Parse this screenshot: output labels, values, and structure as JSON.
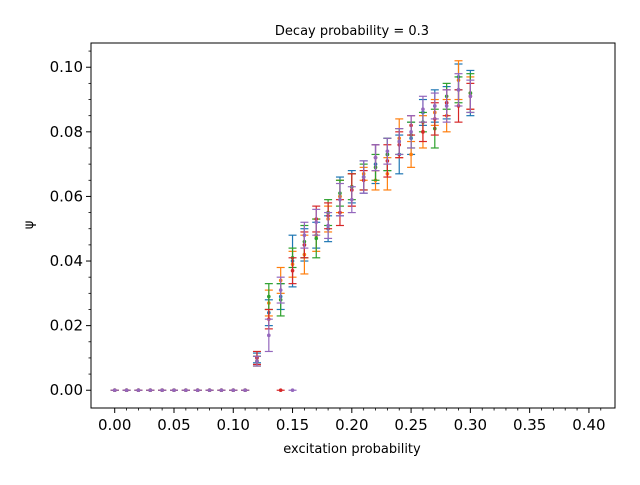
{
  "chart_data": {
    "type": "scatter",
    "title": "Decay probability = 0.3",
    "xlabel": "excitation probability",
    "ylabel": "ψ",
    "xlim": [
      -0.02,
      0.422
    ],
    "ylim": [
      -0.0055,
      0.1075
    ],
    "x_ticks": [
      "0.00",
      "0.05",
      "0.10",
      "0.15",
      "0.20",
      "0.25",
      "0.30",
      "0.35",
      "0.40"
    ],
    "y_ticks": [
      "0.00",
      "0.02",
      "0.04",
      "0.06",
      "0.08",
      "0.10"
    ],
    "grid": false,
    "error_bars": true,
    "colors": {
      "run1": "#1f77b4",
      "run2": "#ff7f0e",
      "run3": "#2ca02c",
      "run4": "#d62728",
      "run5": "#9467bd"
    },
    "x": [
      0.0,
      0.01,
      0.02,
      0.03,
      0.04,
      0.05,
      0.06,
      0.07,
      0.08,
      0.09,
      0.1,
      0.11,
      0.12,
      0.13,
      0.14,
      0.15,
      0.16,
      0.17,
      0.18,
      0.19,
      0.2,
      0.21,
      0.22,
      0.23,
      0.24,
      0.25,
      0.26,
      0.27,
      0.28,
      0.29,
      0.3
    ],
    "series": [
      {
        "color": "#1f77b4",
        "values": [
          0,
          0,
          0,
          0,
          0,
          0,
          0,
          0,
          0,
          0,
          0,
          0,
          0.01,
          0.024,
          0.029,
          0.04,
          0.045,
          0.048,
          0.05,
          0.06,
          0.063,
          0.066,
          0.07,
          0.073,
          0.073,
          0.078,
          0.086,
          0.088,
          0.089,
          0.097,
          0.092
        ],
        "err": [
          0,
          0,
          0,
          0,
          0,
          0,
          0,
          0,
          0,
          0,
          0,
          0,
          0.0015,
          0.004,
          0.004,
          0.008,
          0.005,
          0.004,
          0.004,
          0.006,
          0.005,
          0.005,
          0.006,
          0.005,
          0.006,
          0.005,
          0.004,
          0.005,
          0.005,
          0.004,
          0.007
        ]
      },
      {
        "color": "#ff7f0e",
        "values": [
          0,
          0,
          0,
          0,
          0,
          0,
          0,
          0,
          0,
          0,
          0,
          0,
          0.009,
          0.027,
          0.034,
          0.039,
          0.042,
          0.048,
          0.053,
          0.06,
          0.062,
          0.067,
          0.065,
          0.067,
          0.078,
          0.073,
          0.08,
          0.086,
          0.085,
          0.096,
          0.092
        ],
        "err": [
          0,
          0,
          0,
          0,
          0,
          0,
          0,
          0,
          0,
          0,
          0,
          0,
          0.0015,
          0.004,
          0.004,
          0.004,
          0.006,
          0.005,
          0.004,
          0.005,
          0.005,
          0.002,
          0.003,
          0.005,
          0.006,
          0.004,
          0.005,
          0.004,
          0.005,
          0.006,
          0.005
        ]
      },
      {
        "color": "#2ca02c",
        "values": [
          0,
          0,
          0,
          0,
          0,
          0,
          0,
          0,
          0,
          0,
          0,
          0,
          0.009,
          0.029,
          0.028,
          0.041,
          0.046,
          0.047,
          0.055,
          0.061,
          0.063,
          0.066,
          0.069,
          0.073,
          0.077,
          0.079,
          0.083,
          0.081,
          0.091,
          0.093,
          0.092
        ],
        "err": [
          0,
          0,
          0,
          0,
          0,
          0,
          0,
          0,
          0,
          0,
          0,
          0,
          0.0015,
          0.004,
          0.005,
          0.003,
          0.005,
          0.006,
          0.004,
          0.004,
          0.004,
          0.004,
          0.004,
          0.005,
          0.004,
          0.004,
          0.003,
          0.006,
          0.004,
          0.004,
          0.006
        ]
      },
      {
        "color": "#d62728",
        "values": [
          0,
          0,
          0,
          0,
          0,
          0,
          0,
          0,
          0,
          0,
          0,
          0,
          0.01,
          0.022,
          0,
          0.037,
          0.045,
          0.053,
          0.054,
          0.055,
          0.062,
          0.065,
          0.072,
          0.071,
          0.076,
          0.082,
          0.08,
          0.084,
          0.089,
          0.088,
          0.091
        ],
        "err": [
          0,
          0,
          0,
          0,
          0,
          0,
          0,
          0,
          0,
          0,
          0,
          0,
          0.002,
          0.003,
          0,
          0.004,
          0.004,
          0.004,
          0.004,
          0.004,
          0.005,
          0.003,
          0.004,
          0.005,
          0.004,
          0.003,
          0.003,
          0.005,
          0.004,
          0.005,
          0.004
        ]
      },
      {
        "color": "#9467bd",
        "values": [
          0,
          0,
          0,
          0,
          0,
          0,
          0,
          0,
          0,
          0,
          0,
          0,
          0.009,
          0.017,
          0.031,
          0,
          0.048,
          0.052,
          0.051,
          0.059,
          0.059,
          0.066,
          0.072,
          0.074,
          0.077,
          0.08,
          0.087,
          0.088,
          0.088,
          0.093,
          0.091
        ],
        "err": [
          0,
          0,
          0,
          0,
          0,
          0,
          0,
          0,
          0,
          0,
          0,
          0,
          0.0015,
          0.005,
          0.004,
          0,
          0.004,
          0.004,
          0.004,
          0.005,
          0.004,
          0.005,
          0.004,
          0.004,
          0.004,
          0.005,
          0.004,
          0.004,
          0.005,
          0.005,
          0.005
        ]
      }
    ]
  }
}
